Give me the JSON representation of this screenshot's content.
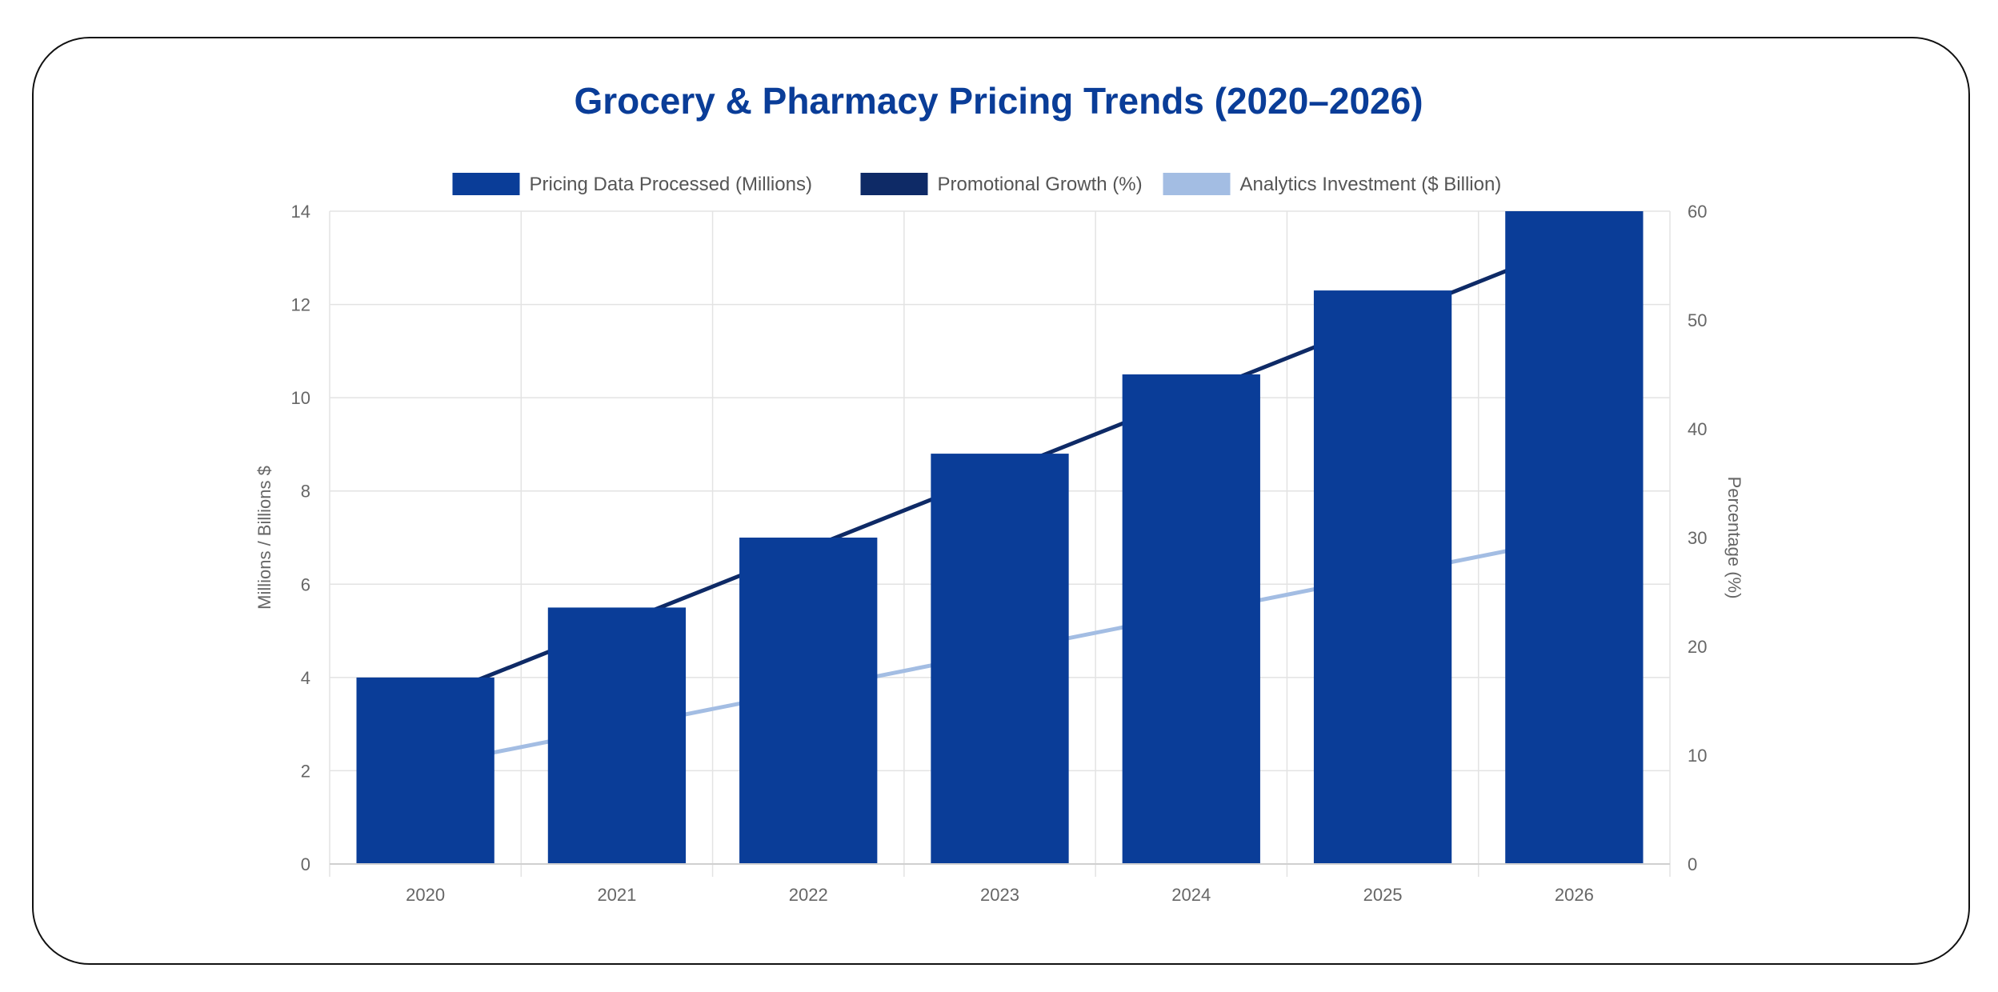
{
  "chart_data": {
    "type": "bar",
    "title": "Grocery & Pharmacy Pricing Trends (2020–2026)",
    "categories": [
      "2020",
      "2021",
      "2022",
      "2023",
      "2024",
      "2025",
      "2026"
    ],
    "series": [
      {
        "name": "Pricing Data Processed (Millions)",
        "type": "bar",
        "axis": "left",
        "color": "#0a3d98",
        "values": [
          4.0,
          5.5,
          7.0,
          8.8,
          10.5,
          12.3,
          14.0
        ]
      },
      {
        "name": "Promotional Growth (%)",
        "type": "line",
        "axis": "right",
        "color": "#0e2a66",
        "values": [
          15,
          22,
          29,
          36,
          43,
          50,
          57
        ]
      },
      {
        "name": "Analytics Investment ($ Billion)",
        "type": "line",
        "axis": "right",
        "color": "#a3bde3",
        "values": [
          9,
          12.5,
          16,
          19.5,
          23,
          26.5,
          30
        ]
      }
    ],
    "y_left": {
      "label": "Millions / Billions $",
      "ylim": [
        0,
        14
      ],
      "ticks": [
        "0",
        "2",
        "4",
        "6",
        "8",
        "10",
        "12",
        "14"
      ]
    },
    "y_right": {
      "label": "Percentage (%)",
      "ylim": [
        0,
        60
      ],
      "ticks": [
        "0",
        "10",
        "20",
        "30",
        "40",
        "50",
        "60"
      ]
    },
    "grid": true,
    "legend_position": "top"
  }
}
